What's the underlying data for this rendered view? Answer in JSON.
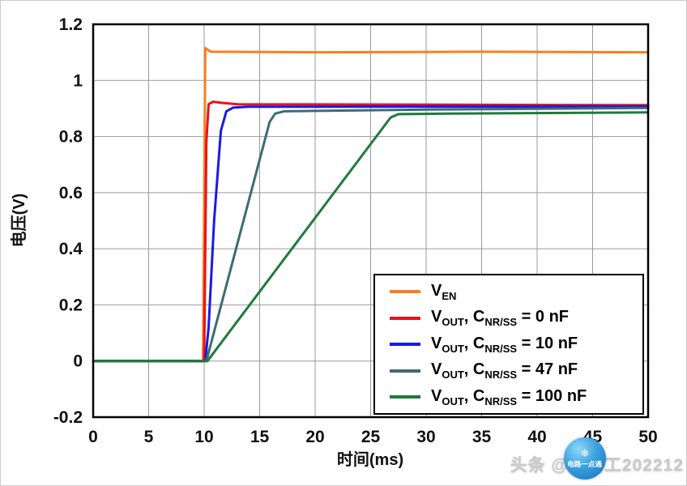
{
  "watermark": {
    "badge_text": "电路一点通",
    "text": "头条 @佳路工202212"
  },
  "chart_data": {
    "type": "line",
    "title": "",
    "xlabel": "时间(ms)",
    "ylabel": "电压(V)",
    "xlim": [
      0,
      50
    ],
    "ylim": [
      -0.2,
      1.2
    ],
    "grid": true,
    "legend_position": "inside-bottom-right",
    "x_ticks": {
      "values": [
        0,
        5,
        10,
        15,
        20,
        25,
        30,
        35,
        40,
        45,
        50
      ],
      "labels": [
        "0",
        "5",
        "10",
        "15",
        "20",
        "25",
        "30",
        "35",
        "40",
        "45",
        "50"
      ]
    },
    "y_ticks": {
      "values": [
        -0.2,
        0,
        0.2,
        0.4,
        0.6,
        0.8,
        1,
        1.2
      ],
      "labels": [
        "-0.2",
        "0",
        "0.2",
        "0.4",
        "0.6",
        "0.8",
        "1",
        "1.2"
      ]
    },
    "series": [
      {
        "name": "VEN",
        "color": "#F77F1F",
        "name_parts": [
          {
            "t": "V"
          },
          {
            "t": "EN",
            "sub": true
          }
        ],
        "points": [
          [
            0,
            0
          ],
          [
            9.9,
            0
          ],
          [
            10.1,
            1.115
          ],
          [
            10.6,
            1.102
          ],
          [
            20,
            1.1
          ],
          [
            35,
            1.102
          ],
          [
            50,
            1.1
          ]
        ]
      },
      {
        "name": "VOUT, CNR/SS = 0 nF",
        "color": "#E8121C",
        "name_parts": [
          {
            "t": "V"
          },
          {
            "t": "OUT",
            "sub": true
          },
          {
            "t": ", C"
          },
          {
            "t": "NR/SS",
            "sub": true
          },
          {
            "t": " = 0 nF"
          }
        ],
        "points": [
          [
            0,
            0
          ],
          [
            10,
            0
          ],
          [
            10.2,
            0.78
          ],
          [
            10.4,
            0.915
          ],
          [
            10.8,
            0.924
          ],
          [
            11.6,
            0.92
          ],
          [
            13,
            0.915
          ],
          [
            50,
            0.912
          ]
        ]
      },
      {
        "name": "VOUT, CNR/SS = 10 nF",
        "color": "#1A1AE6",
        "name_parts": [
          {
            "t": "V"
          },
          {
            "t": "OUT",
            "sub": true
          },
          {
            "t": ", C"
          },
          {
            "t": "NR/SS",
            "sub": true
          },
          {
            "t": " = 10 nF"
          }
        ],
        "points": [
          [
            0,
            0
          ],
          [
            10.1,
            0
          ],
          [
            10.4,
            0.12
          ],
          [
            10.9,
            0.5
          ],
          [
            11.5,
            0.82
          ],
          [
            12,
            0.89
          ],
          [
            12.6,
            0.903
          ],
          [
            14,
            0.906
          ],
          [
            50,
            0.907
          ]
        ]
      },
      {
        "name": "VOUT, CNR/SS = 47 nF",
        "color": "#3F6B73",
        "name_parts": [
          {
            "t": "V"
          },
          {
            "t": "OUT",
            "sub": true
          },
          {
            "t": ", C"
          },
          {
            "t": "NR/SS",
            "sub": true
          },
          {
            "t": " = 47 nF"
          }
        ],
        "points": [
          [
            0,
            0
          ],
          [
            10.2,
            0
          ],
          [
            15.9,
            0.852
          ],
          [
            16.4,
            0.882
          ],
          [
            17.2,
            0.89
          ],
          [
            30,
            0.896
          ],
          [
            50,
            0.902
          ]
        ]
      },
      {
        "name": "VOUT, CNR/SS = 100 nF",
        "color": "#1F7A3D",
        "name_parts": [
          {
            "t": "V"
          },
          {
            "t": "OUT",
            "sub": true
          },
          {
            "t": ", C"
          },
          {
            "t": "NR/SS",
            "sub": true
          },
          {
            "t": " = 100 nF"
          }
        ],
        "points": [
          [
            0,
            0
          ],
          [
            10.3,
            0
          ],
          [
            26.8,
            0.868
          ],
          [
            27.5,
            0.88
          ],
          [
            32,
            0.882
          ],
          [
            50,
            0.886
          ]
        ]
      }
    ]
  }
}
